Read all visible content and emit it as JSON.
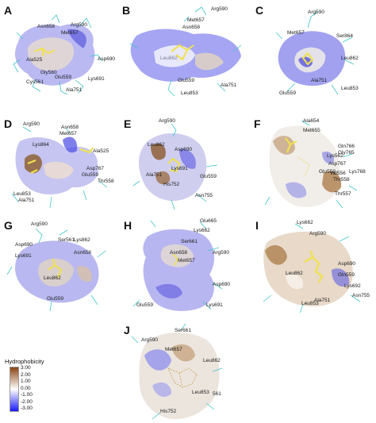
{
  "legend": {
    "title": "Hydrophobicity",
    "ticks": [
      "3.00",
      "2.00",
      "1.00",
      "0.00",
      "-1.00",
      "-2.00",
      "-3.00"
    ],
    "colors": {
      "top": "#8b4513",
      "mid": "#ffffff",
      "bottom": "#1a1aff"
    }
  },
  "panels": [
    {
      "id": "A",
      "residues": [
        "Asn658",
        "Arg590",
        "Met657",
        "Asp690",
        "Ala525",
        "Gly560",
        "Cys561",
        "Glu559",
        "Lys691",
        "Ala751"
      ]
    },
    {
      "id": "B",
      "residues": [
        "Arg590",
        "Met657",
        "Asn658",
        "Leu862",
        "Glu559",
        "Ala751",
        "Leu853"
      ]
    },
    {
      "id": "C",
      "residues": [
        "Arg590",
        "Met657",
        "Ser864",
        "Leu862",
        "Ala751",
        "Leu853",
        "Glu559"
      ]
    },
    {
      "id": "D",
      "residues": [
        "Arg590",
        "Asn658",
        "Met657",
        "Lys864",
        "Ala525",
        "Asp767",
        "Glu559",
        "Thr558",
        "Leu853",
        "Ala751"
      ]
    },
    {
      "id": "E",
      "residues": [
        "Arg590",
        "Leu862",
        "Asp690",
        "Lys691",
        "Ala751",
        "Glu559",
        "His752",
        "Asn755"
      ]
    },
    {
      "id": "F",
      "residues": [
        "Ala654",
        "Met655",
        "Gln766",
        "Gly765",
        "Lys562",
        "Asp767",
        "Glu559",
        "Val556",
        "Thr558",
        "Lys768",
        "Thr557"
      ]
    },
    {
      "id": "G",
      "residues": [
        "Arg590",
        "Ser561",
        "Lys862",
        "Asp690",
        "Asn658",
        "Lys691",
        "Leu862",
        "Glu559"
      ]
    },
    {
      "id": "H",
      "residues": [
        "Glu665",
        "Lys662",
        "Ser661",
        "Asn658",
        "Met657",
        "Arg590",
        "Asp690",
        "Glu559",
        "Lys691"
      ]
    },
    {
      "id": "I",
      "residues": [
        "Lys662",
        "Arg590",
        "Asp690",
        "Leu862",
        "Gln559",
        "Lys692",
        "Asn755",
        "Leu853",
        "Ala751"
      ]
    },
    {
      "id": "J",
      "residues": [
        "Arg590",
        "Ser661",
        "Met657",
        "Leu862",
        "Leu853",
        "561",
        "His752"
      ]
    }
  ]
}
